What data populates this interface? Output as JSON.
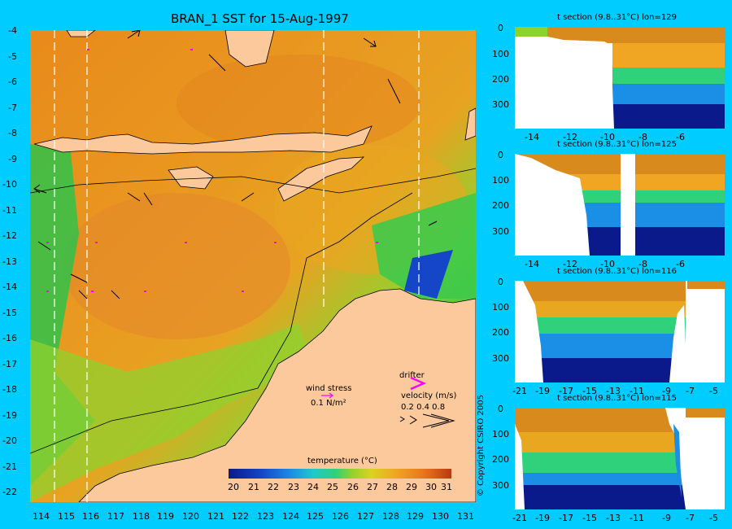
{
  "chart_data": [
    {
      "type": "heatmap",
      "title": "BRAN_1 SST for 15-Aug-1997",
      "x_ticks": [
        "114",
        "115",
        "116",
        "117",
        "118",
        "119",
        "120",
        "121",
        "122",
        "123",
        "124",
        "125",
        "126",
        "127",
        "128",
        "129",
        "130",
        "131"
      ],
      "y_ticks": [
        "-4",
        "-5",
        "-6",
        "-7",
        "-8",
        "-9",
        "-10",
        "-11",
        "-12",
        "-13",
        "-14",
        "-15",
        "-16",
        "-17",
        "-18",
        "-19",
        "-20",
        "-21",
        "-22"
      ],
      "xlim": [
        113.5,
        131.4
      ],
      "ylim": [
        -22.3,
        -4
      ],
      "section_lines_lon": [
        114.5,
        115.8,
        125.4,
        129.3
      ],
      "colorbar": {
        "title": "temperature (°C)",
        "ticks": [
          "20",
          "21",
          "22",
          "23",
          "24",
          "25",
          "26",
          "27",
          "28",
          "29",
          "30",
          "31"
        ]
      }
    },
    {
      "type": "heatmap",
      "title": "t section (9.8..31°C) lon=129",
      "x_ticks": [
        "-14",
        "-12",
        "-10",
        "-8",
        "-6"
      ],
      "y_ticks": [
        "0",
        "100",
        "200",
        "300"
      ],
      "xlim": [
        -15,
        -4.5
      ],
      "ylim": [
        380,
        0
      ]
    },
    {
      "type": "heatmap",
      "title": "t section (9.8..31°C) lon=125",
      "x_ticks": [
        "-14",
        "-12",
        "-10",
        "-8",
        "-6"
      ],
      "y_ticks": [
        "0",
        "100",
        "200",
        "300"
      ],
      "xlim": [
        -15,
        -4.5
      ],
      "ylim": [
        380,
        0
      ]
    },
    {
      "type": "heatmap",
      "title": "t section (9.8..31°C) lon=116",
      "x_ticks": [
        "-21",
        "-19",
        "-17",
        "-15",
        "-13",
        "-11",
        "-9",
        "-7",
        "-5"
      ],
      "y_ticks": [
        "0",
        "100",
        "200",
        "300"
      ],
      "xlim": [
        -22,
        -4
      ],
      "ylim": [
        380,
        0
      ]
    },
    {
      "type": "heatmap",
      "title": "t section (9.8..31°C) lon=115",
      "x_ticks": [
        "-21",
        "-19",
        "-17",
        "-15",
        "-13",
        "-11",
        "-9",
        "-7",
        "-5"
      ],
      "y_ticks": [
        "0",
        "100",
        "200",
        "300"
      ],
      "xlim": [
        -22,
        -4
      ],
      "ylim": [
        380,
        0
      ]
    }
  ],
  "legend": {
    "wind_stress_label": "wind stress",
    "wind_stress_scale": "0.1 N/m²",
    "drifter_label": "drifter",
    "velocity_label": "velocity (m/s)",
    "velocity_scale": "0.2 0.4 0.8"
  },
  "copyright": "© Copyright CSIRO 2005",
  "colors": {
    "background": "#00ccff",
    "land": "#fcc99c",
    "drifter": "#ff00ff"
  }
}
